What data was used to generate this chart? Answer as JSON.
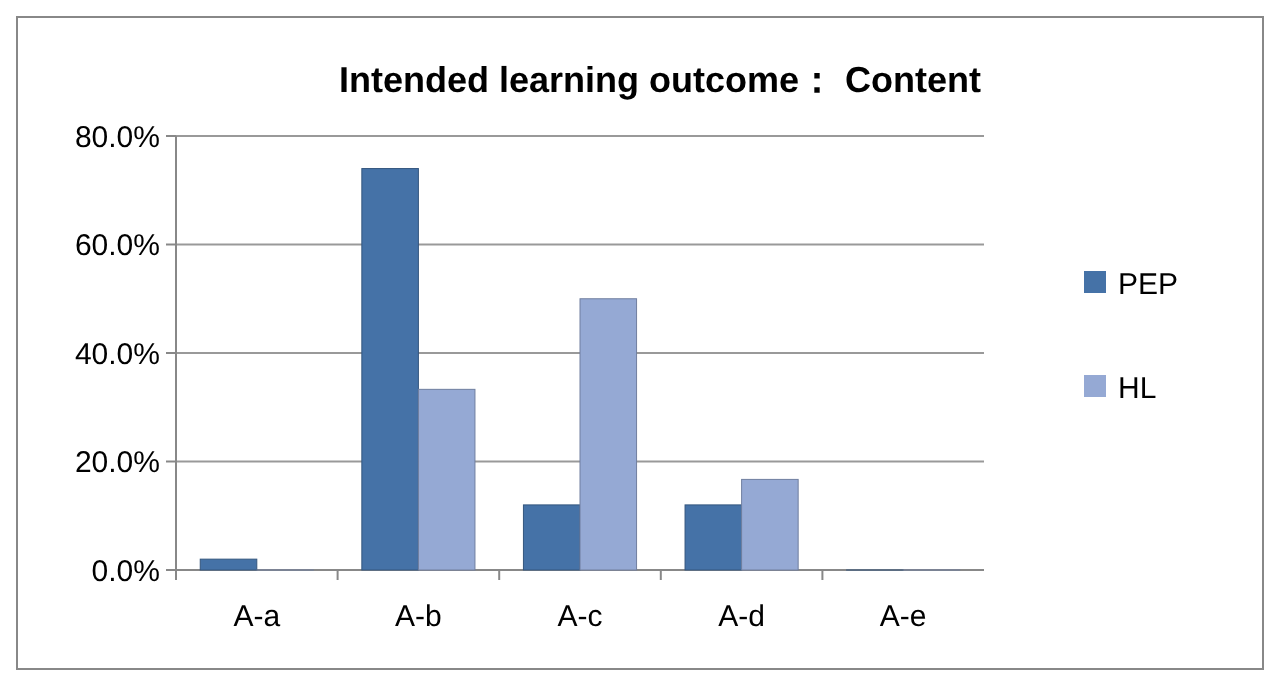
{
  "chart_data": {
    "type": "bar",
    "title": "Intended learning outcome： Content",
    "categories": [
      "A-a",
      "A-b",
      "A-c",
      "A-d",
      "A-e"
    ],
    "series": [
      {
        "name": "PEP",
        "color": "#4572a7",
        "values": [
          2,
          74,
          12,
          12,
          0
        ]
      },
      {
        "name": "HL",
        "color": "#95a9d4",
        "values": [
          0,
          33.3,
          50,
          16.7,
          0
        ]
      }
    ],
    "ylim": [
      0,
      80
    ],
    "yticks": [
      {
        "value": 0,
        "label": "0.0%"
      },
      {
        "value": 20,
        "label": "20.0%"
      },
      {
        "value": 40,
        "label": "40.0%"
      },
      {
        "value": 60,
        "label": "60.0%"
      },
      {
        "value": 80,
        "label": "80.0%"
      }
    ],
    "grid": "y",
    "legend": "right"
  }
}
